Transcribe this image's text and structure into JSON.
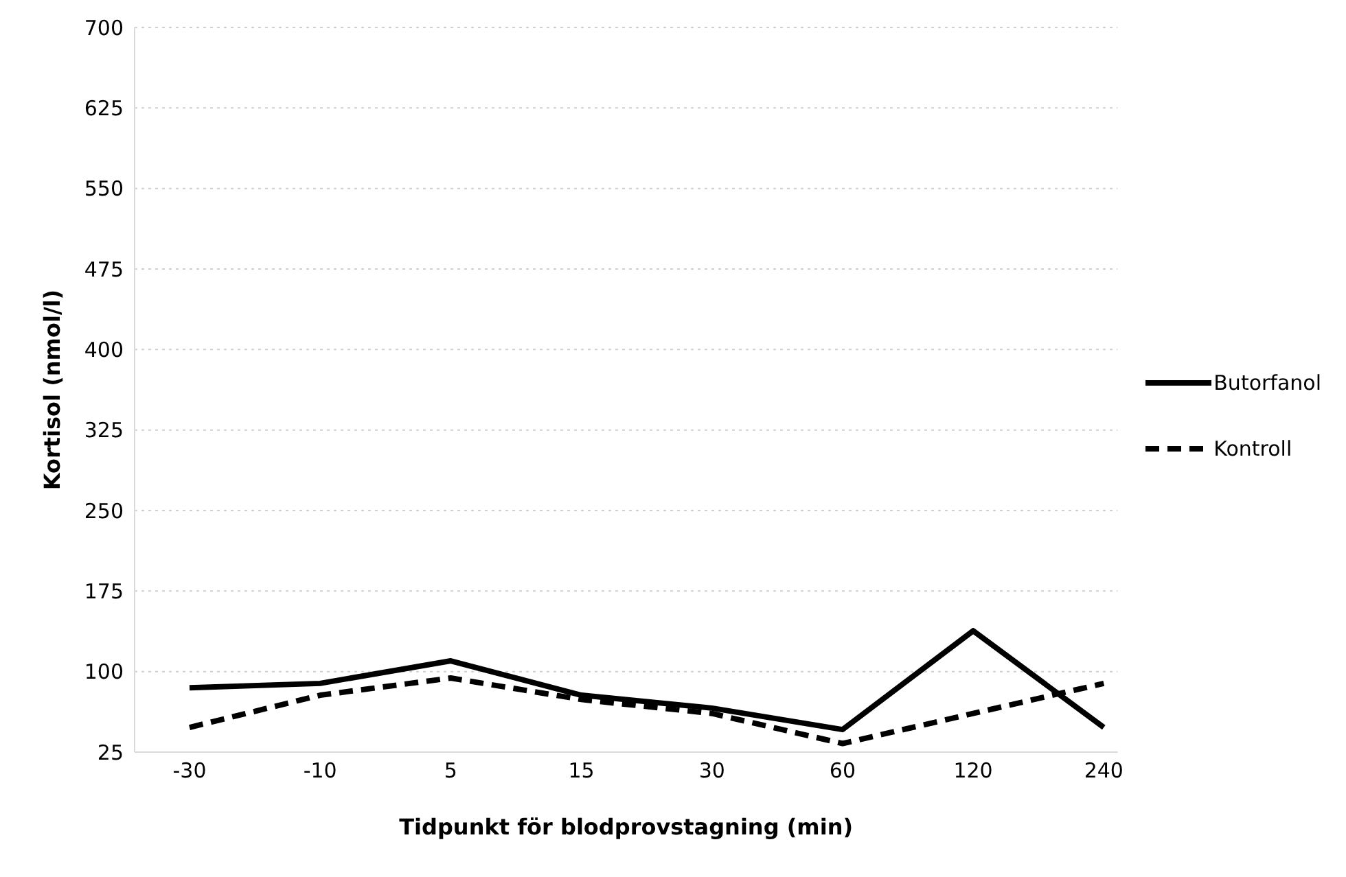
{
  "chart_data": {
    "type": "line",
    "xlabel": "Tidpunkt för blodprovstagning (min)",
    "ylabel": "Kortisol (nmol/l)",
    "categories": [
      "-30",
      "-10",
      "5",
      "15",
      "30",
      "60",
      "120",
      "240"
    ],
    "series": [
      {
        "name": "Butorfanol",
        "color": "#000000",
        "line_style": "solid",
        "values": [
          85,
          89,
          110,
          78,
          66,
          46,
          138,
          48
        ]
      },
      {
        "name": "Kontroll",
        "color": "#000000",
        "line_style": "dashed",
        "values": [
          48,
          78,
          94,
          74,
          61,
          33,
          61,
          89
        ]
      }
    ],
    "ylim": [
      25,
      700
    ],
    "yticks": [
      25,
      100,
      175,
      250,
      325,
      400,
      475,
      550,
      625,
      700
    ],
    "grid": "y",
    "legend": "right",
    "marker": "none"
  }
}
